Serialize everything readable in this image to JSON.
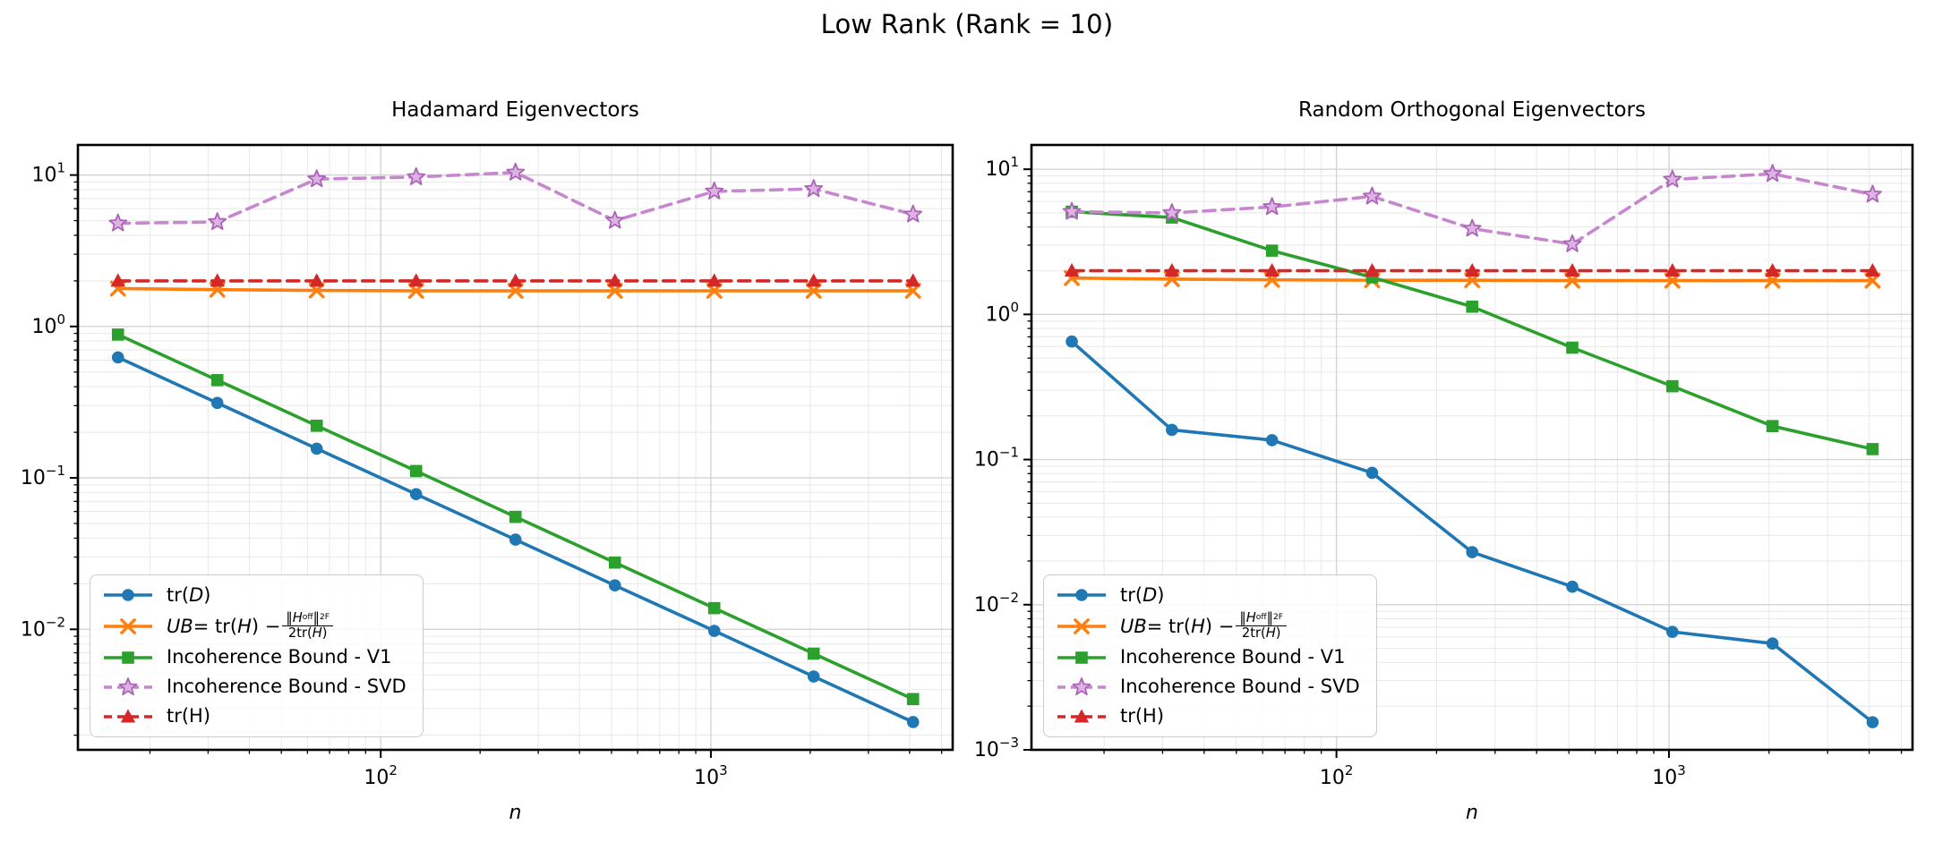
{
  "figure": {
    "suptitle": "Low Rank (Rank = 10)",
    "background": "#ffffff"
  },
  "colors": {
    "blue": "#1f77b4",
    "orange": "#ff7f0e",
    "green": "#2ca02c",
    "purple": "#c787ce",
    "purple_edge": "#ab63b8",
    "purple_fill": "#ddb3e3",
    "red": "#d62728",
    "grid_major": "#d4d4d4",
    "grid_minor": "#eaeaea",
    "spine": "#000000"
  },
  "legend": {
    "position": "lower left",
    "labels": [
      [
        {
          "t": "tr("
        },
        {
          "t": "D",
          "i": 1
        },
        {
          "t": ")"
        }
      ],
      [
        {
          "t": "UB",
          "i": 1
        },
        {
          "t": " = tr("
        },
        {
          "t": "H",
          "i": 1
        },
        {
          "t": ") − "
        },
        {
          "frac": {
            "num": [
              {
                "t": "‖"
              },
              {
                "t": "H",
                "i": 1
              },
              {
                "t": "off",
                "sub": 1
              },
              {
                "t": "‖"
              },
              {
                "t": "2",
                "sup": 1
              },
              {
                "t": "F",
                "sub": 1
              }
            ],
            "den": [
              {
                "t": "2tr("
              },
              {
                "t": "H",
                "i": 1
              },
              {
                "t": ")"
              }
            ]
          }
        }
      ],
      [
        {
          "t": "Incoherence Bound - V1"
        }
      ],
      [
        {
          "t": "Incoherence Bound - SVD"
        }
      ],
      [
        {
          "t": "tr(H)"
        }
      ]
    ]
  },
  "chart_data": [
    {
      "type": "line",
      "title": "Hadamard Eigenvectors",
      "xlabel": "n",
      "xscale": "log",
      "yscale": "log",
      "grid": "major and minor, light gray",
      "xlim": [
        12.1,
        5400
      ],
      "ylim": [
        0.0016,
        15.8
      ],
      "x_ticks_exp": [
        2,
        3
      ],
      "y_ticks_exp": [
        1,
        0,
        -1,
        -2
      ],
      "x": [
        16,
        32,
        64,
        128,
        256,
        512,
        1024,
        2048,
        4096
      ],
      "series": [
        {
          "name": "tr(D)",
          "color": "#1f77b4",
          "marker": "circle",
          "linestyle": "solid",
          "y": [
            0.625,
            0.3125,
            0.156,
            0.0781,
            0.0391,
            0.0195,
            0.00977,
            0.00488,
            0.00244
          ]
        },
        {
          "name": "UB = tr(H) − ‖H_off‖²_F / (2tr(H))",
          "color": "#ff7f0e",
          "marker": "x",
          "linestyle": "solid",
          "y": [
            1.78,
            1.75,
            1.73,
            1.72,
            1.72,
            1.72,
            1.72,
            1.72,
            1.72
          ]
        },
        {
          "name": "Incoherence Bound - V1",
          "color": "#2ca02c",
          "marker": "square",
          "linestyle": "solid",
          "y": [
            0.884,
            0.442,
            0.221,
            0.111,
            0.0553,
            0.0276,
            0.0138,
            0.00691,
            0.00346
          ]
        },
        {
          "name": "Incoherence Bound - SVD",
          "color": "#c787ce",
          "marker": "star",
          "linestyle": "dashed",
          "marker_edge": "#ab63b8",
          "marker_fill": "#ddb3e3",
          "y": [
            4.8,
            4.9,
            9.4,
            9.7,
            10.4,
            5.0,
            7.8,
            8.1,
            5.5
          ]
        },
        {
          "name": "tr(H)",
          "color": "#d62728",
          "marker": "triangle",
          "linestyle": "dashed",
          "y": [
            2.0,
            2.0,
            2.0,
            2.0,
            2.0,
            2.0,
            2.0,
            2.0,
            2.0
          ]
        }
      ]
    },
    {
      "type": "line",
      "title": "Random Orthogonal Eigenvectors",
      "xlabel": "n",
      "xscale": "log",
      "yscale": "log",
      "grid": "major and minor, light gray",
      "xlim": [
        12.1,
        5400
      ],
      "ylim": [
        0.001,
        14.7
      ],
      "x_ticks_exp": [
        2,
        3
      ],
      "y_ticks_exp": [
        1,
        0,
        -1,
        -2,
        -3
      ],
      "x": [
        16,
        32,
        64,
        128,
        256,
        512,
        1024,
        2048,
        4096
      ],
      "series": [
        {
          "name": "tr(D)",
          "color": "#1f77b4",
          "marker": "circle",
          "linestyle": "solid",
          "y": [
            0.65,
            0.16,
            0.136,
            0.081,
            0.023,
            0.0133,
            0.0065,
            0.0054,
            0.00155
          ]
        },
        {
          "name": "UB = tr(H) − ‖H_off‖²_F / (2tr(H))",
          "color": "#ff7f0e",
          "marker": "x",
          "linestyle": "solid",
          "y": [
            1.78,
            1.75,
            1.73,
            1.72,
            1.72,
            1.71,
            1.71,
            1.71,
            1.71
          ]
        },
        {
          "name": "Incoherence Bound - V1",
          "color": "#2ca02c",
          "marker": "square",
          "linestyle": "solid",
          "y": [
            5.1,
            4.65,
            2.75,
            1.8,
            1.13,
            0.59,
            0.32,
            0.17,
            0.118
          ]
        },
        {
          "name": "Incoherence Bound - SVD",
          "color": "#c787ce",
          "marker": "star",
          "linestyle": "dashed",
          "marker_edge": "#ab63b8",
          "marker_fill": "#ddb3e3",
          "y": [
            5.1,
            5.0,
            5.5,
            6.5,
            3.9,
            3.05,
            8.5,
            9.3,
            6.7
          ]
        },
        {
          "name": "tr(H)",
          "color": "#d62728",
          "marker": "triangle",
          "linestyle": "dashed",
          "y": [
            2.0,
            2.0,
            2.0,
            2.0,
            2.0,
            2.0,
            2.0,
            2.0,
            2.0
          ]
        }
      ]
    }
  ]
}
